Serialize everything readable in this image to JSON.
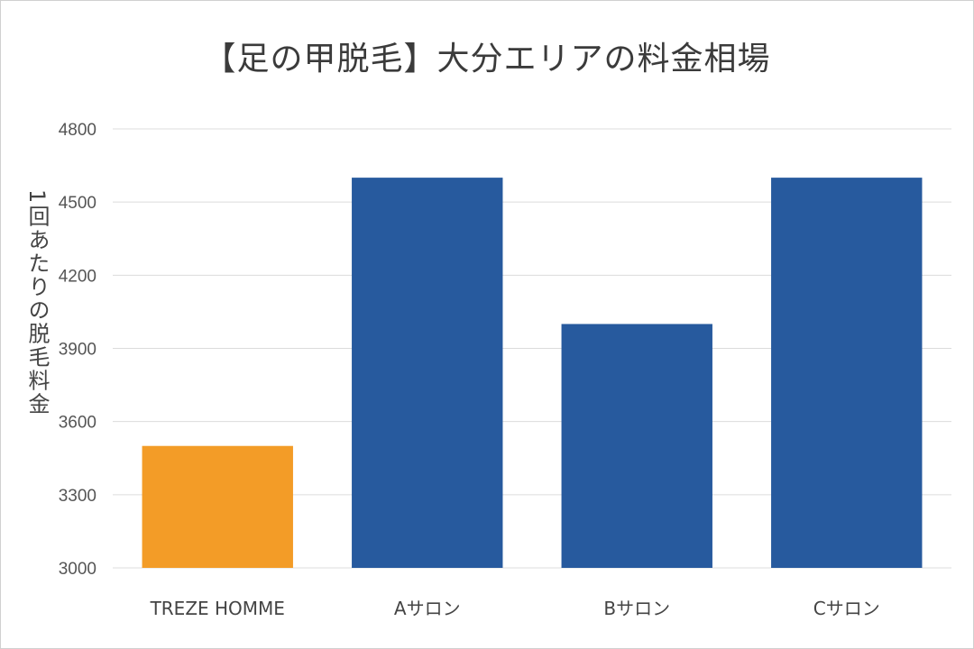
{
  "chart_data": {
    "type": "bar",
    "title": "【足の甲脱毛】大分エリアの料金相場",
    "xlabel": "",
    "ylabel": "1回あたりの脱毛料金",
    "ylim": [
      3000,
      4800
    ],
    "yticks": [
      3000,
      3300,
      3600,
      3900,
      4200,
      4500,
      4800
    ],
    "categories": [
      "TREZE HOMME",
      "Aサロン",
      "Bサロン",
      "Cサロン"
    ],
    "values": [
      3500,
      4600,
      4000,
      4600
    ],
    "colors": [
      "#F39C27",
      "#275A9E",
      "#275A9E",
      "#275A9E"
    ],
    "grid": true,
    "legend": "none"
  }
}
